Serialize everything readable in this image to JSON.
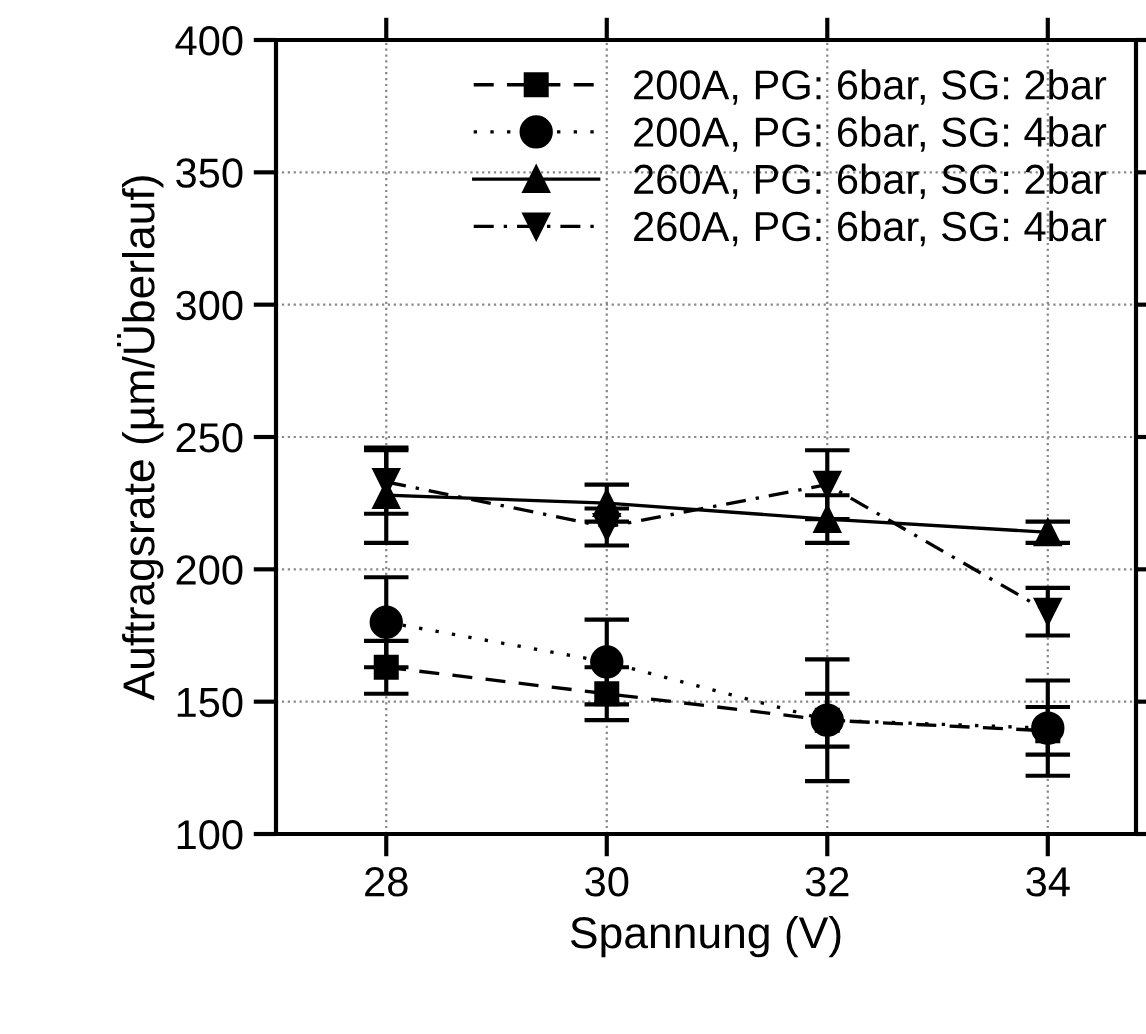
{
  "chart_data": {
    "type": "line",
    "xlabel": "Spannung (V)",
    "ylabel": "Auftragsrate (µm/Überlauf)",
    "x": [
      28,
      30,
      32,
      34
    ],
    "xlim": [
      27,
      34.8
    ],
    "xticks": [
      28,
      30,
      32,
      34
    ],
    "ylim": [
      100,
      400
    ],
    "yticks": [
      100,
      150,
      200,
      250,
      300,
      350,
      400
    ],
    "grid": true,
    "legend": "top right",
    "series": [
      {
        "name": "200A, PG: 6bar, SG: 2bar",
        "color": "#000000",
        "marker": "square",
        "line_style": "dashed",
        "values": [
          163,
          153,
          143,
          139
        ],
        "errors": [
          10,
          10,
          10,
          9
        ]
      },
      {
        "name": "200A, PG: 6bar, SG: 4bar",
        "color": "#000000",
        "marker": "circle",
        "line_style": "dotted",
        "values": [
          180,
          165,
          143,
          140
        ],
        "errors": [
          17,
          16,
          23,
          18
        ]
      },
      {
        "name": "260A, PG: 6bar, SG: 2bar",
        "color": "#000000",
        "marker": "triangle",
        "line_style": "solid",
        "values": [
          228,
          225,
          219,
          214
        ],
        "errors": [
          18,
          7,
          9,
          4
        ]
      },
      {
        "name": "260A, PG: 6bar, SG: 4bar",
        "color": "#000000",
        "marker": "triangle_down",
        "line_style": "dashdot",
        "values": [
          233,
          216,
          232,
          184
        ],
        "errors": [
          12,
          7,
          13,
          9
        ]
      }
    ]
  }
}
